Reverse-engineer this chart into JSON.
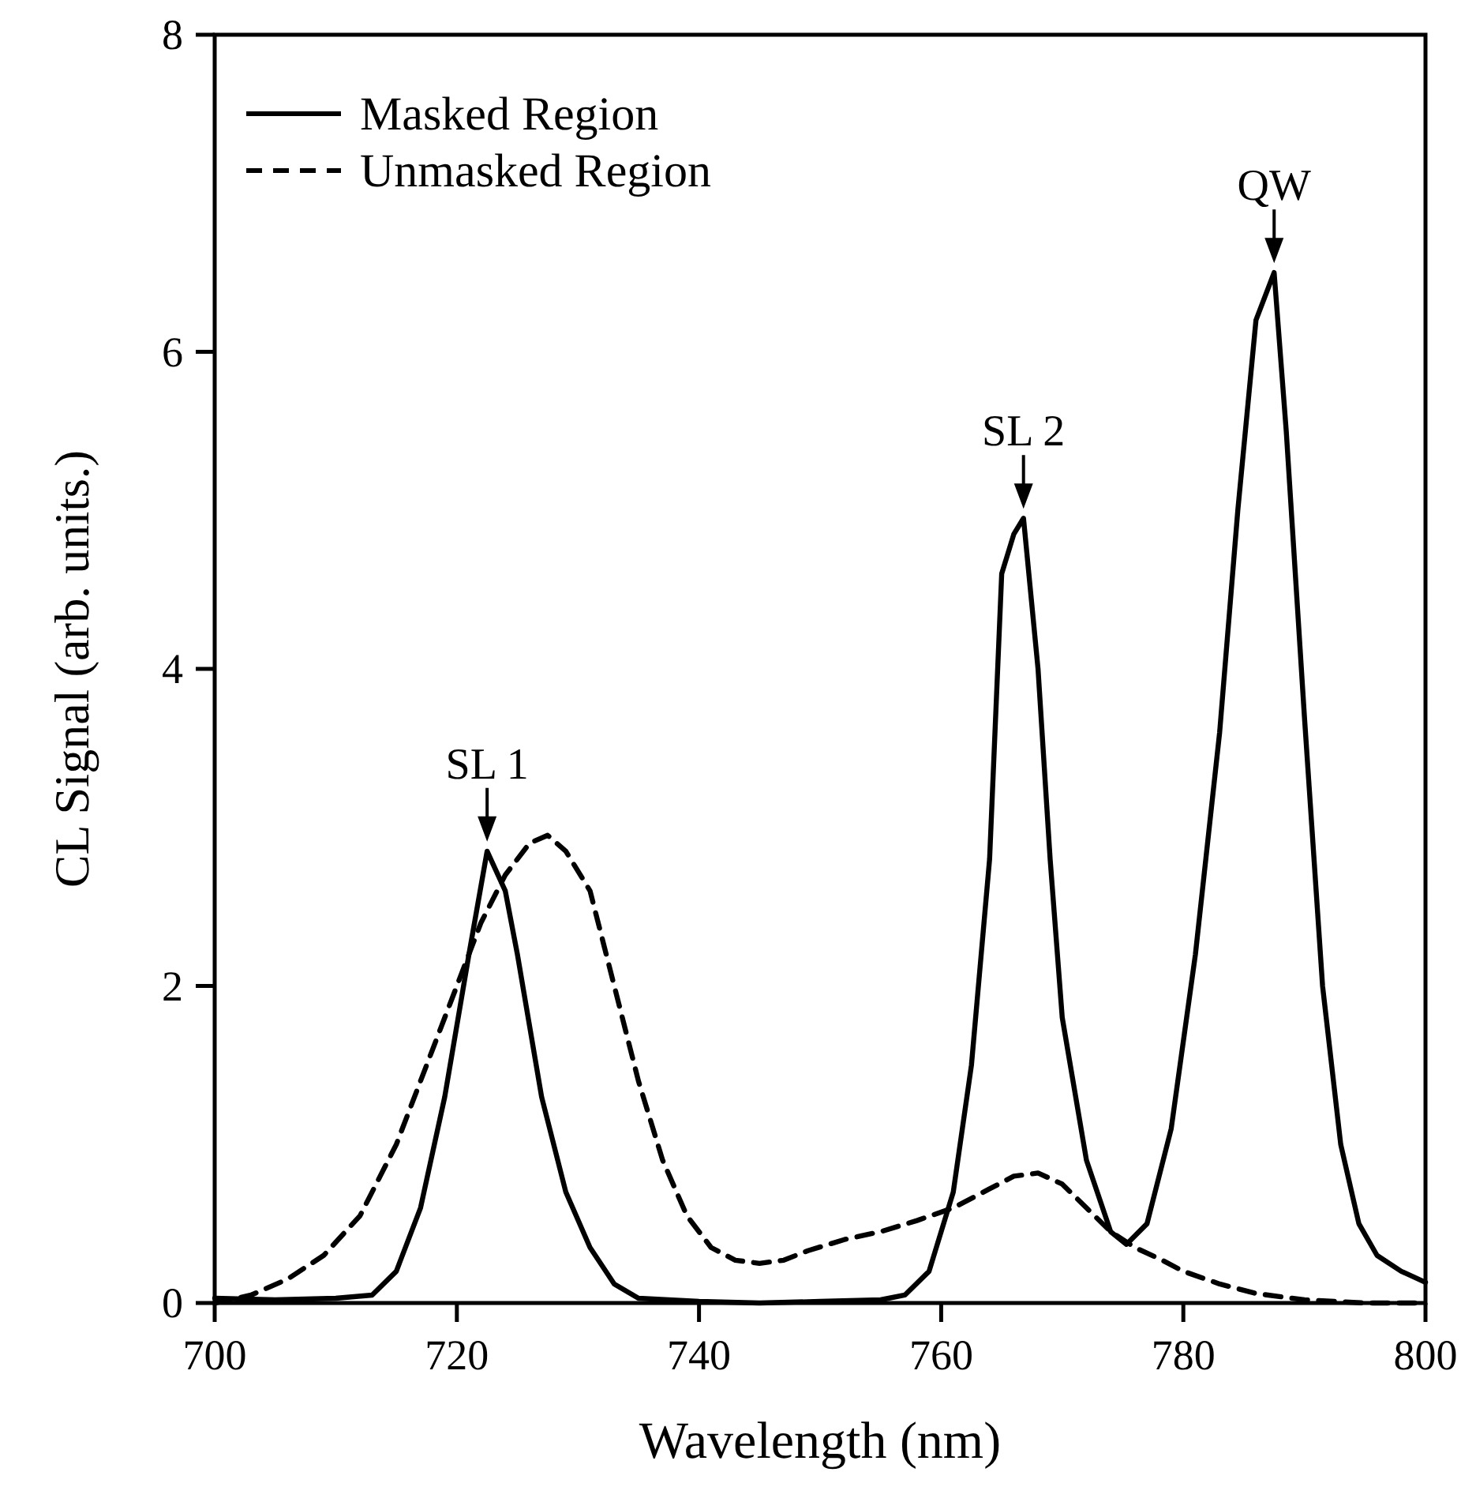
{
  "chart_data": {
    "type": "line",
    "xlabel": "Wavelength (nm)",
    "ylabel": "CL Signal (arb. units.)",
    "xlim": [
      700,
      800
    ],
    "xticks": [
      700,
      720,
      740,
      760,
      780,
      800
    ],
    "ylim": [
      0,
      8
    ],
    "yticks": [
      0,
      2,
      4,
      6,
      8
    ],
    "grid": false,
    "legend": "top left",
    "series": [
      {
        "name": "Masked Region",
        "color": "#000000",
        "line_style": "solid",
        "x": [
          700,
          705,
          710,
          713,
          715,
          717,
          719,
          721,
          722.5,
          724,
          725,
          727,
          729,
          731,
          733,
          735,
          740,
          745,
          750,
          755,
          757,
          759,
          761,
          762.5,
          764,
          765,
          766,
          766.8,
          768,
          769,
          770,
          772,
          774,
          775.3,
          777,
          779,
          781,
          783,
          784.5,
          786,
          787.5,
          788.5,
          790,
          791.5,
          793,
          794.5,
          796,
          798,
          800
        ],
        "values": [
          0.03,
          0.02,
          0.03,
          0.05,
          0.2,
          0.6,
          1.3,
          2.2,
          2.85,
          2.6,
          2.2,
          1.3,
          0.7,
          0.35,
          0.12,
          0.03,
          0.01,
          0,
          0.01,
          0.02,
          0.05,
          0.2,
          0.7,
          1.5,
          2.8,
          4.6,
          4.85,
          4.95,
          4.0,
          2.8,
          1.8,
          0.9,
          0.45,
          0.37,
          0.5,
          1.1,
          2.2,
          3.6,
          5.0,
          6.2,
          6.5,
          5.5,
          3.7,
          2.0,
          1.0,
          0.5,
          0.3,
          0.2,
          0.13
        ]
      },
      {
        "name": "Unmasked Region",
        "color": "#000000",
        "line_style": "dashed",
        "x": [
          700,
          703,
          706,
          709,
          712,
          715,
          718,
          720,
          722,
          724,
          726,
          727.5,
          729,
          731,
          733,
          735,
          737,
          739,
          741,
          743,
          745,
          747,
          749,
          752,
          755,
          758,
          761,
          764,
          766,
          768,
          770,
          772,
          774,
          776,
          778,
          780,
          783,
          786,
          790,
          795,
          800
        ],
        "values": [
          0,
          0.05,
          0.15,
          0.3,
          0.55,
          1.0,
          1.6,
          2.0,
          2.4,
          2.7,
          2.9,
          2.95,
          2.85,
          2.6,
          2.0,
          1.4,
          0.9,
          0.55,
          0.35,
          0.27,
          0.25,
          0.27,
          0.33,
          0.4,
          0.45,
          0.52,
          0.6,
          0.72,
          0.8,
          0.82,
          0.75,
          0.6,
          0.45,
          0.35,
          0.28,
          0.2,
          0.12,
          0.06,
          0.02,
          0,
          0
        ]
      }
    ],
    "annotations": [
      {
        "text": "SL 1",
        "x": 722.5,
        "y": 2.85
      },
      {
        "text": "SL 2",
        "x": 766.8,
        "y": 4.95
      },
      {
        "text": "QW",
        "x": 787.5,
        "y": 6.5
      }
    ]
  }
}
